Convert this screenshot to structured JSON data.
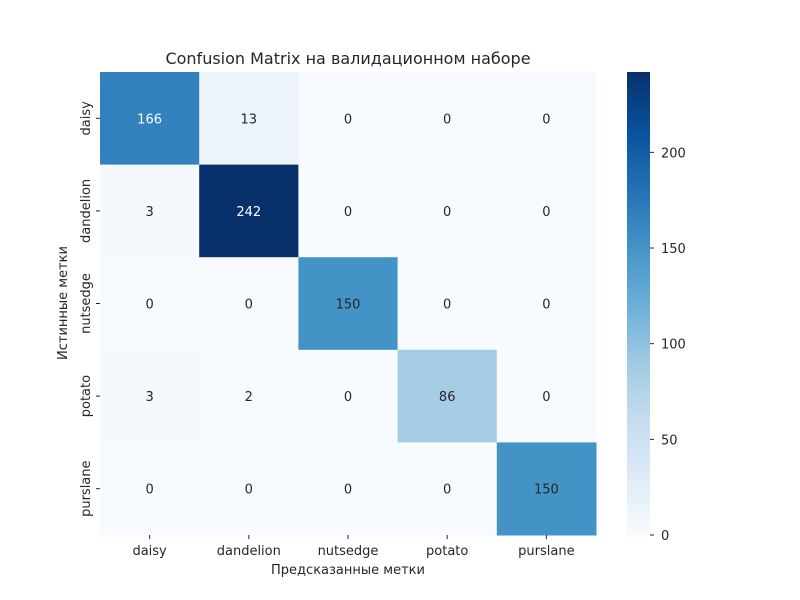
{
  "chart_data": {
    "type": "heatmap",
    "title": "Confusion Matrix на валидационном наборе",
    "xlabel": "Предсказанные метки",
    "ylabel": "Истинные метки",
    "x_categories": [
      "daisy",
      "dandelion",
      "nutsedge",
      "potato",
      "purslane"
    ],
    "y_categories": [
      "daisy",
      "dandelion",
      "nutsedge",
      "potato",
      "purslane"
    ],
    "values": [
      [
        166,
        13,
        0,
        0,
        0
      ],
      [
        3,
        242,
        0,
        0,
        0
      ],
      [
        0,
        0,
        150,
        0,
        0
      ],
      [
        3,
        2,
        0,
        86,
        0
      ],
      [
        0,
        0,
        0,
        0,
        150
      ]
    ],
    "colormap": "Blues",
    "colorbar": {
      "range": [
        0,
        242
      ],
      "ticks": [
        0,
        50,
        100,
        150,
        200
      ]
    },
    "annotations": true
  }
}
